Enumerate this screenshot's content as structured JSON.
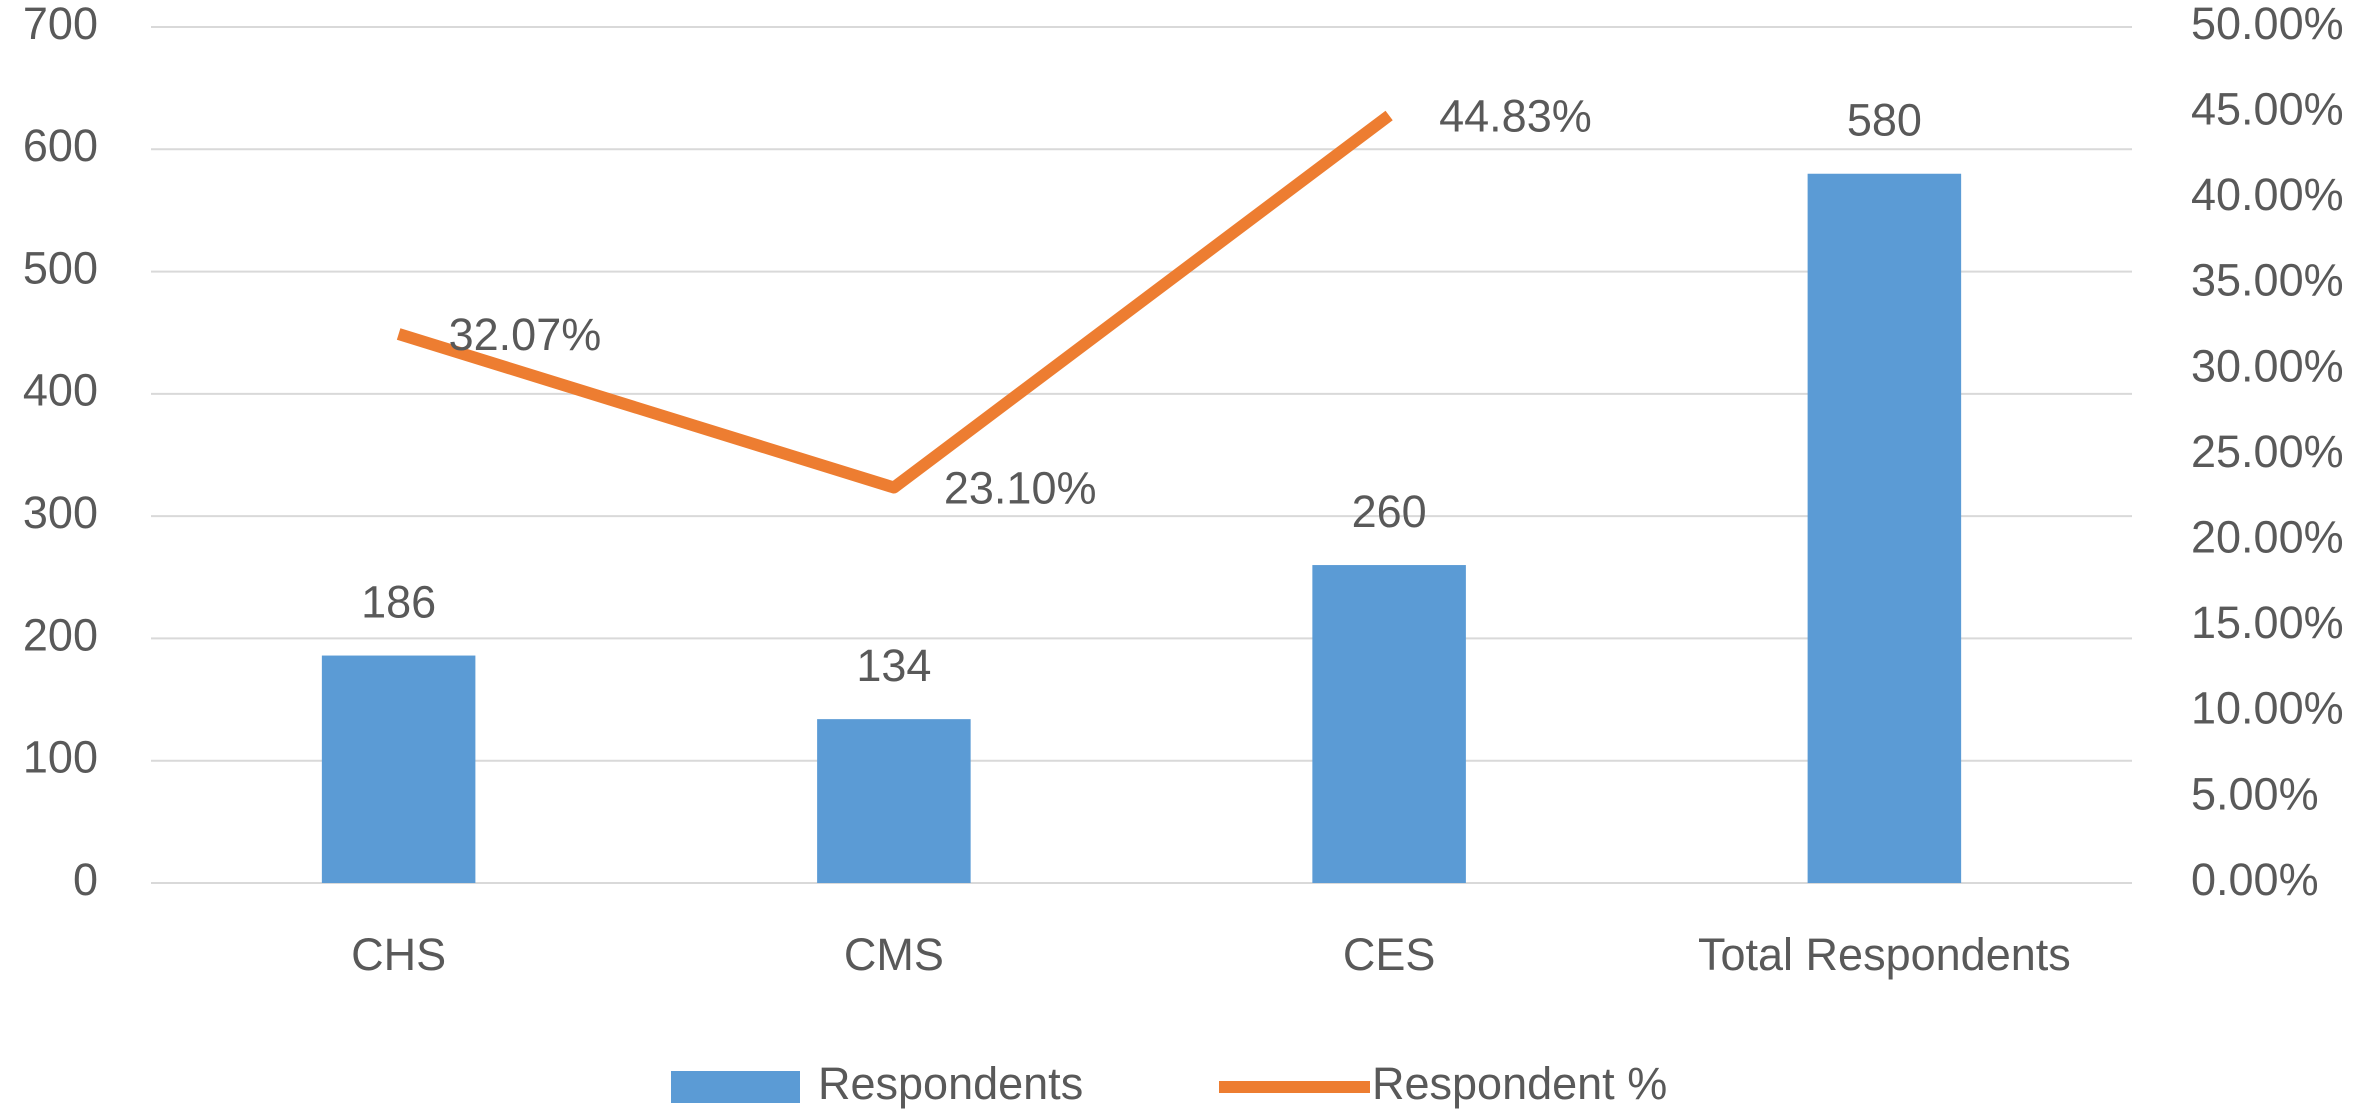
{
  "chart_data": {
    "type": "bar-line",
    "categories": [
      "CHS",
      "CMS",
      "CES",
      "Total Respondents"
    ],
    "series": [
      {
        "name": "Respondents",
        "type": "bar",
        "color": "#5b9bd5",
        "values": [
          186,
          134,
          260,
          580
        ]
      },
      {
        "name": "Respondent %",
        "type": "line",
        "axis": "y2",
        "color": "#ed7d31",
        "values": [
          32.07,
          23.1,
          44.83,
          null
        ],
        "value_labels": [
          "32.07%",
          "23.10%",
          "44.83%",
          null
        ]
      }
    ],
    "ylim": [
      0,
      700
    ],
    "yticks": [
      0,
      100,
      200,
      300,
      400,
      500,
      600,
      700
    ],
    "y2lim": [
      0,
      50
    ],
    "y2ticks": [
      {
        "value": 0,
        "label": "0.00%"
      },
      {
        "value": 5,
        "label": "5.00%"
      },
      {
        "value": 10,
        "label": "10.00%"
      },
      {
        "value": 15,
        "label": "15.00%"
      },
      {
        "value": 20,
        "label": "20.00%"
      },
      {
        "value": 25,
        "label": "25.00%"
      },
      {
        "value": 30,
        "label": "30.00%"
      },
      {
        "value": 35,
        "label": "35.00%"
      },
      {
        "value": 40,
        "label": "40.00%"
      },
      {
        "value": 45,
        "label": "45.00%"
      },
      {
        "value": 50,
        "label": "50.00%"
      }
    ],
    "grid": true,
    "legend": "bottom"
  }
}
